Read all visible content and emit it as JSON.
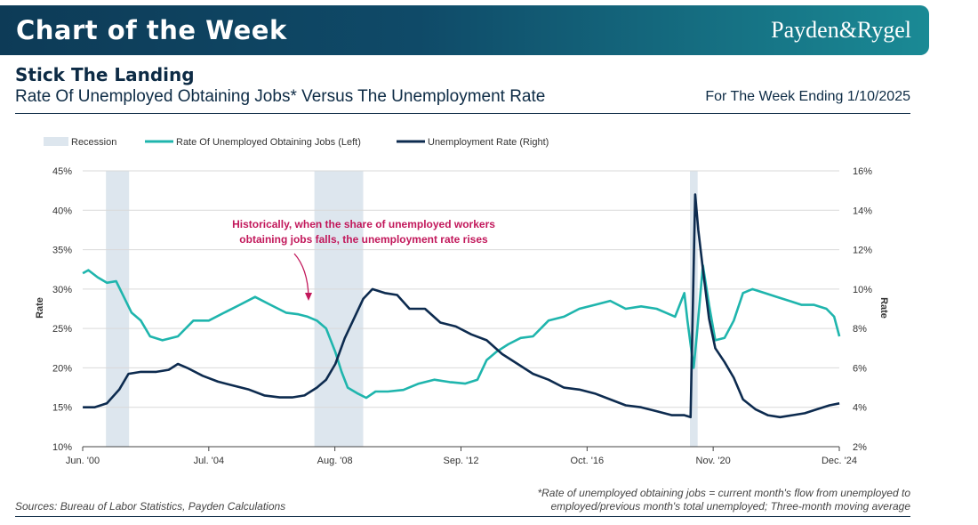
{
  "header": {
    "banner_title": "Chart of the Week",
    "brand": "Payden&Rygel"
  },
  "title": "Stick The Landing",
  "subtitle": "Rate Of Unemployed Obtaining Jobs* Versus The Unemployment Rate",
  "week_ending": "For The Week Ending 1/10/2025",
  "sources": "Sources: Bureau of Labor Statistics, Payden Calculations",
  "footnote": {
    "line1": "*Rate of unemployed obtaining jobs = current month's flow from unemployed to",
    "line2": "employed/previous month's total unemployed; Three-month moving average"
  },
  "colors": {
    "teal": "#1fb5ad",
    "navy": "#0d2b4f",
    "recession": "#dde6ee",
    "annotation": "#c2185b"
  },
  "chart_data": {
    "type": "line",
    "title": "Rate Of Unemployed Obtaining Jobs* Versus The Unemployment Rate",
    "xlabel": "",
    "ylabel_left": "Rate",
    "ylabel_right": "Rate",
    "xlim": [
      2000.417,
      2024.917
    ],
    "ylim_left": [
      10,
      45
    ],
    "ylim_right": [
      2,
      16
    ],
    "x_ticks": [
      2000.417,
      2004.5,
      2008.583,
      2012.667,
      2016.75,
      2020.833,
      2024.917
    ],
    "x_tick_labels": [
      "Jun. '00",
      "Jul. '04",
      "Aug. '08",
      "Sep. '12",
      "Oct. '16",
      "Nov. '20",
      "Dec. '24"
    ],
    "y_left_ticks": [
      10,
      15,
      20,
      25,
      30,
      35,
      40,
      45
    ],
    "y_left_tick_labels": [
      "10%",
      "15%",
      "20%",
      "25%",
      "30%",
      "35%",
      "40%",
      "45%"
    ],
    "y_right_ticks": [
      2,
      4,
      6,
      8,
      10,
      12,
      14,
      16
    ],
    "y_right_tick_labels": [
      "2%",
      "4%",
      "6%",
      "8%",
      "10%",
      "12%",
      "14%",
      "16%"
    ],
    "legend": {
      "recession": "Recession",
      "teal": "Rate Of Unemployed Obtaining Jobs (Left)",
      "navy": "Unemployment Rate (Right)"
    },
    "recessions": [
      [
        2001.17,
        2001.92
      ],
      [
        2007.92,
        2009.5
      ],
      [
        2020.08,
        2020.33
      ]
    ],
    "series": [
      {
        "name": "Rate Of Unemployed Obtaining Jobs (Left)",
        "axis": "left",
        "x": [
          2000.42,
          2000.6,
          2000.9,
          2001.2,
          2001.5,
          2001.75,
          2002.0,
          2002.3,
          2002.6,
          2003.0,
          2003.5,
          2004.0,
          2004.5,
          2005.0,
          2005.5,
          2006.0,
          2006.5,
          2007.0,
          2007.4,
          2007.7,
          2008.0,
          2008.3,
          2008.6,
          2008.8,
          2009.0,
          2009.3,
          2009.6,
          2009.9,
          2010.3,
          2010.8,
          2011.3,
          2011.8,
          2012.3,
          2012.8,
          2013.2,
          2013.5,
          2013.8,
          2014.2,
          2014.6,
          2015.0,
          2015.5,
          2016.0,
          2016.5,
          2017.0,
          2017.5,
          2018.0,
          2018.5,
          2019.0,
          2019.3,
          2019.6,
          2019.9,
          2020.0,
          2020.2,
          2020.3,
          2020.5,
          2020.7,
          2020.9,
          2021.2,
          2021.5,
          2021.8,
          2022.1,
          2022.5,
          2022.9,
          2023.3,
          2023.7,
          2024.1,
          2024.5,
          2024.75,
          2024.92
        ],
        "y": [
          32.0,
          32.4,
          31.5,
          30.8,
          31.0,
          29.0,
          27.0,
          26.0,
          24.0,
          23.5,
          24.0,
          26.0,
          26.0,
          27.0,
          28.0,
          29.0,
          28.0,
          27.0,
          26.8,
          26.5,
          26.0,
          25.0,
          22.0,
          19.5,
          17.5,
          16.8,
          16.2,
          17.0,
          17.0,
          17.2,
          18.0,
          18.5,
          18.2,
          18.0,
          18.5,
          21.0,
          22.0,
          23.0,
          23.8,
          24.0,
          26.0,
          26.5,
          27.5,
          28.0,
          28.5,
          27.5,
          27.8,
          27.5,
          27.0,
          26.5,
          29.5,
          26.0,
          20.0,
          24.0,
          33.0,
          28.0,
          23.5,
          23.8,
          26.0,
          29.5,
          30.0,
          29.5,
          29.0,
          28.5,
          28.0,
          28.0,
          27.5,
          26.5,
          24.0
        ]
      },
      {
        "name": "Unemployment Rate (Right)",
        "axis": "right",
        "x": [
          2000.42,
          2000.8,
          2001.2,
          2001.6,
          2001.9,
          2002.3,
          2002.8,
          2003.2,
          2003.5,
          2003.8,
          2004.3,
          2004.8,
          2005.3,
          2005.8,
          2006.3,
          2006.8,
          2007.2,
          2007.6,
          2008.0,
          2008.3,
          2008.6,
          2008.9,
          2009.2,
          2009.5,
          2009.8,
          2010.2,
          2010.6,
          2011.0,
          2011.5,
          2012.0,
          2012.5,
          2013.0,
          2013.5,
          2014.0,
          2014.5,
          2015.0,
          2015.5,
          2016.0,
          2016.5,
          2017.0,
          2017.5,
          2018.0,
          2018.5,
          2019.0,
          2019.5,
          2019.9,
          2020.1,
          2020.25,
          2020.35,
          2020.5,
          2020.7,
          2020.9,
          2021.2,
          2021.5,
          2021.8,
          2022.2,
          2022.6,
          2023.0,
          2023.4,
          2023.8,
          2024.2,
          2024.6,
          2024.92
        ],
        "y": [
          4.0,
          4.0,
          4.2,
          4.9,
          5.7,
          5.8,
          5.8,
          5.9,
          6.2,
          6.0,
          5.6,
          5.3,
          5.1,
          4.9,
          4.6,
          4.5,
          4.5,
          4.6,
          5.0,
          5.4,
          6.2,
          7.5,
          8.5,
          9.5,
          10.0,
          9.8,
          9.7,
          9.0,
          9.0,
          8.3,
          8.1,
          7.7,
          7.4,
          6.7,
          6.2,
          5.7,
          5.4,
          5.0,
          4.9,
          4.7,
          4.4,
          4.1,
          4.0,
          3.8,
          3.6,
          3.6,
          3.5,
          14.8,
          13.0,
          11.0,
          8.5,
          7.0,
          6.3,
          5.5,
          4.4,
          3.9,
          3.6,
          3.5,
          3.6,
          3.7,
          3.9,
          4.1,
          4.2
        ]
      }
    ],
    "annotation": {
      "line1": "Historically, when the share of unemployed workers",
      "line2": "obtaining jobs falls, the unemployment rate rises"
    }
  }
}
